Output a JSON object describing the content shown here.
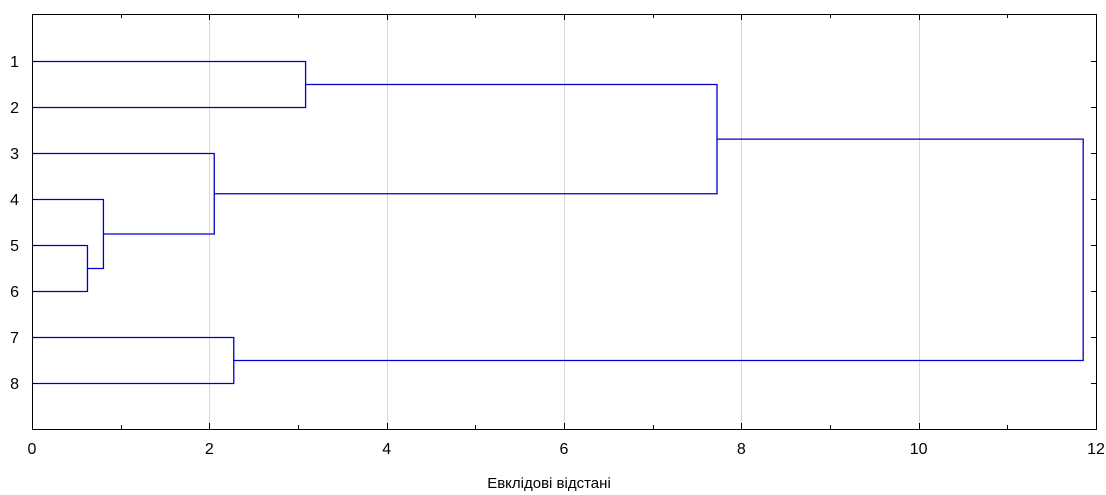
{
  "chart_data": {
    "type": "dendrogram",
    "orientation": "horizontal",
    "xlabel": "Евклідові відстані",
    "ylabel": "",
    "title": "",
    "xlim": [
      0,
      12
    ],
    "x_ticks": [
      0,
      2,
      4,
      6,
      8,
      10,
      12
    ],
    "leaves": [
      "1",
      "2",
      "3",
      "4",
      "5",
      "6",
      "7",
      "8"
    ],
    "grid": {
      "vertical": true,
      "horizontal": false
    },
    "merges": [
      {
        "id": "c56",
        "children": [
          "5",
          "6"
        ],
        "height": 0.62
      },
      {
        "id": "c456",
        "children": [
          "4",
          "c56"
        ],
        "height": 0.8
      },
      {
        "id": "c3456",
        "children": [
          "3",
          "c456"
        ],
        "height": 2.05
      },
      {
        "id": "c78",
        "children": [
          "7",
          "8"
        ],
        "height": 2.27
      },
      {
        "id": "c12",
        "children": [
          "1",
          "2"
        ],
        "height": 3.08
      },
      {
        "id": "c1to6",
        "children": [
          "c12",
          "c3456"
        ],
        "height": 7.72
      },
      {
        "id": "root",
        "children": [
          "c1to6",
          "c78"
        ],
        "height": 11.85
      }
    ],
    "colors": {
      "link": "#0000cc",
      "frame": "#000000",
      "grid": "#d9d9d9"
    }
  }
}
